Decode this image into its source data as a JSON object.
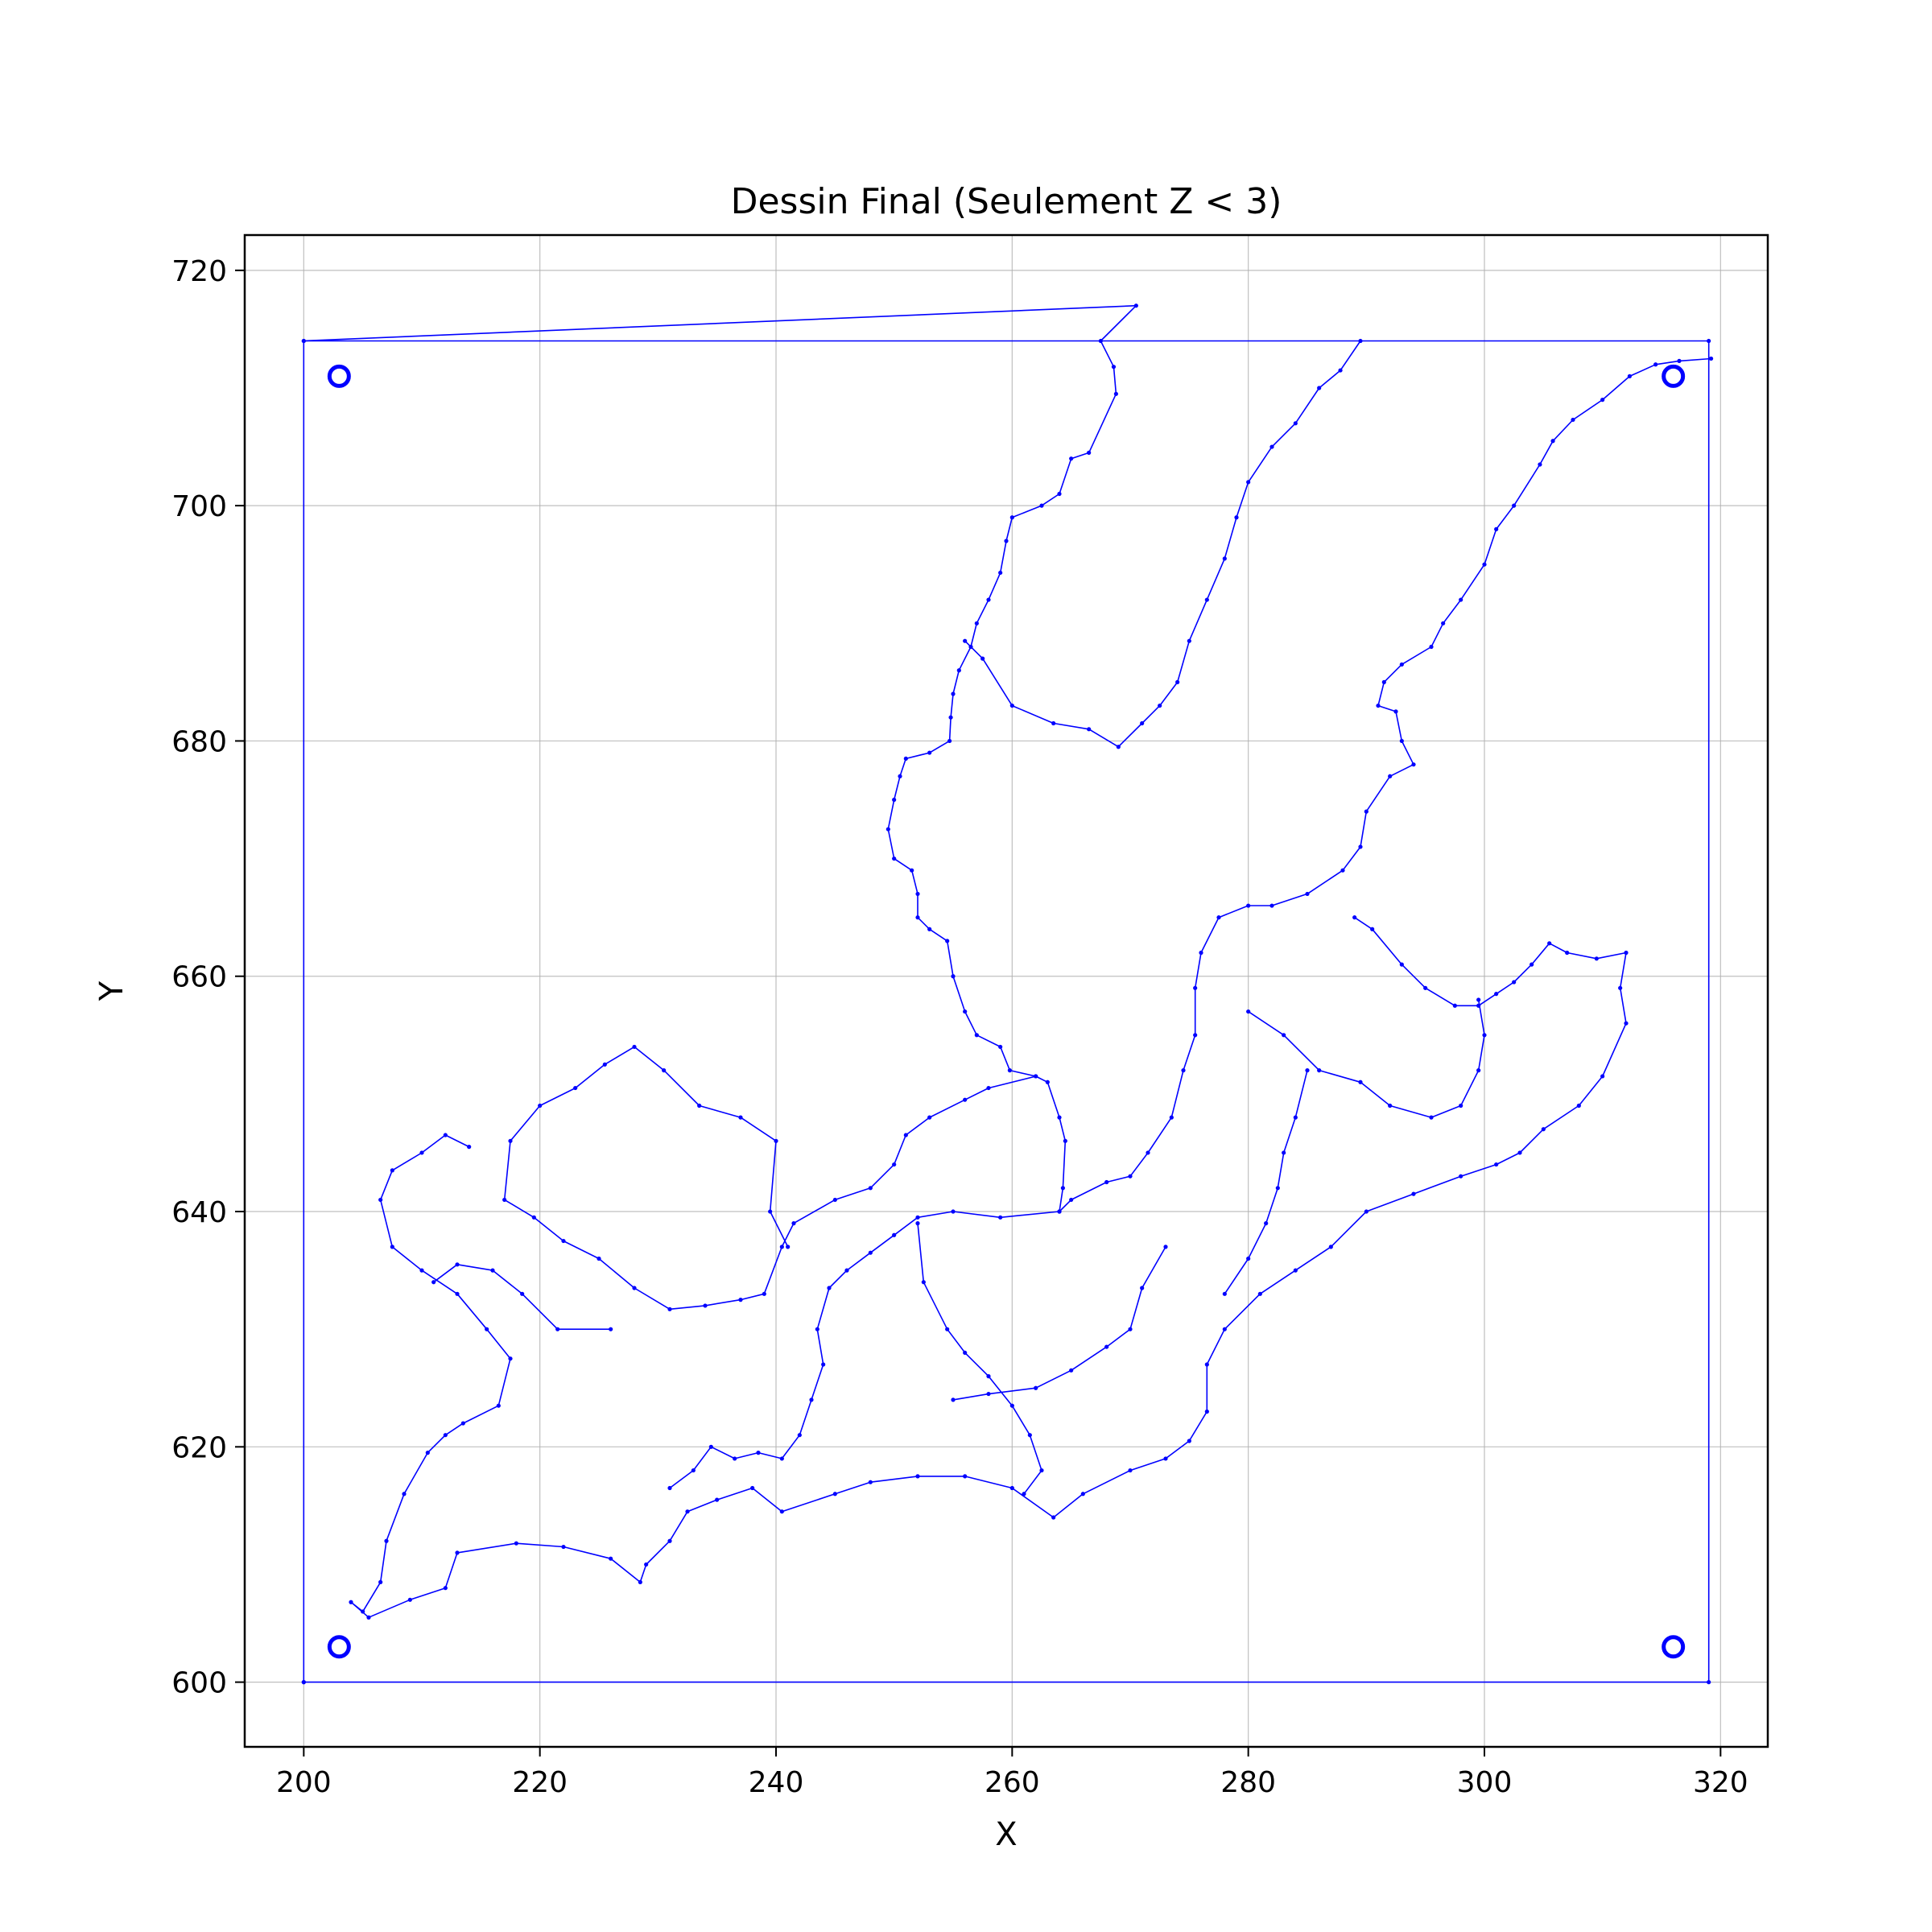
{
  "chart_data": {
    "type": "line",
    "title": "Dessin Final (Seulement Z < 3)",
    "xlabel": "X",
    "ylabel": "Y",
    "xlim": [
      195,
      324
    ],
    "ylim": [
      594.5,
      723
    ],
    "xticks": [
      200,
      220,
      240,
      260,
      280,
      300,
      320
    ],
    "yticks": [
      600,
      620,
      640,
      660,
      680,
      700,
      720
    ],
    "xtick_labels": [
      "200",
      "220",
      "240",
      "260",
      "280",
      "300",
      "320"
    ],
    "ytick_labels": [
      "600",
      "620",
      "640",
      "660",
      "680",
      "700",
      "720"
    ],
    "grid": true,
    "legend": "none",
    "line_color": "#0000ff",
    "series": [
      {
        "values": [
          [
            200,
            600
          ],
          [
            319,
            600
          ],
          [
            319,
            714
          ],
          [
            200,
            714
          ],
          [
            200,
            600
          ]
        ]
      },
      {
        "values": [
          [
            200,
            714
          ],
          [
            270.5,
            717
          ],
          [
            267.5,
            714
          ],
          [
            268.6,
            711.8
          ],
          [
            268.8,
            709.5
          ],
          [
            266.5,
            704.5
          ],
          [
            265,
            704
          ],
          [
            264,
            701
          ],
          [
            262.5,
            700
          ],
          [
            260,
            699
          ],
          [
            259.5,
            697
          ],
          [
            259,
            694.3
          ],
          [
            258,
            692
          ],
          [
            257,
            690
          ],
          [
            256.5,
            688
          ],
          [
            255.5,
            686
          ],
          [
            255,
            684
          ],
          [
            254.8,
            682
          ],
          [
            254.7,
            680
          ],
          [
            253,
            679
          ],
          [
            251,
            678.5
          ],
          [
            250.5,
            677
          ],
          [
            250,
            675
          ],
          [
            249.5,
            672.5
          ],
          [
            250,
            670
          ],
          [
            251.5,
            669
          ],
          [
            252,
            667
          ],
          [
            252,
            665
          ],
          [
            253,
            664
          ],
          [
            254.5,
            663
          ],
          [
            255,
            660
          ],
          [
            256,
            657
          ],
          [
            257,
            655
          ],
          [
            259,
            654
          ],
          [
            259.8,
            652
          ],
          [
            262,
            651.5
          ],
          [
            263,
            651
          ],
          [
            264,
            648
          ],
          [
            264.5,
            646
          ],
          [
            264.3,
            642
          ],
          [
            264,
            640
          ]
        ]
      },
      {
        "values": [
          [
            289.5,
            714
          ],
          [
            287.8,
            711.5
          ],
          [
            286,
            710
          ],
          [
            284,
            707
          ],
          [
            282,
            705
          ],
          [
            280,
            702
          ],
          [
            279,
            699
          ],
          [
            278,
            695.5
          ],
          [
            276.5,
            692
          ],
          [
            275,
            688.5
          ],
          [
            274,
            685
          ],
          [
            272.5,
            683
          ],
          [
            271,
            681.5
          ],
          [
            269,
            679.5
          ],
          [
            266.5,
            681
          ],
          [
            263.5,
            681.5
          ],
          [
            260,
            683
          ],
          [
            257.5,
            687
          ],
          [
            256,
            688.5
          ]
        ]
      },
      {
        "values": [
          [
            319.2,
            712.5
          ],
          [
            316.5,
            712.3
          ],
          [
            314.5,
            712
          ],
          [
            312.3,
            711
          ],
          [
            310,
            709
          ],
          [
            307.5,
            707.3
          ],
          [
            305.8,
            705.5
          ],
          [
            304.7,
            703.5
          ],
          [
            302.5,
            700
          ],
          [
            301,
            698
          ],
          [
            300,
            695
          ],
          [
            298,
            692
          ],
          [
            296.5,
            690
          ],
          [
            295.5,
            688
          ],
          [
            293,
            686.5
          ],
          [
            291.5,
            685
          ],
          [
            291,
            683
          ],
          [
            292.5,
            682.5
          ],
          [
            293,
            680
          ],
          [
            294,
            678
          ],
          [
            292,
            677
          ],
          [
            290,
            674
          ],
          [
            289.5,
            671
          ],
          [
            288,
            669
          ],
          [
            285,
            667
          ],
          [
            282,
            666
          ],
          [
            280,
            666
          ],
          [
            277.5,
            665
          ],
          [
            276,
            662
          ],
          [
            275.5,
            659
          ],
          [
            275.5,
            655
          ],
          [
            274.5,
            652
          ],
          [
            273.5,
            648
          ],
          [
            271.5,
            645
          ],
          [
            270,
            643
          ],
          [
            268,
            642.5
          ],
          [
            265,
            641
          ],
          [
            264,
            640
          ]
        ]
      },
      {
        "values": [
          [
            262,
            651.5
          ],
          [
            258,
            650.5
          ],
          [
            256,
            649.5
          ],
          [
            253,
            648
          ],
          [
            251,
            646.5
          ],
          [
            250,
            644
          ],
          [
            248,
            642
          ],
          [
            245,
            641
          ],
          [
            241.5,
            639
          ],
          [
            240.5,
            637
          ],
          [
            239,
            633
          ],
          [
            237,
            632.5
          ],
          [
            234,
            632
          ],
          [
            231,
            631.7
          ],
          [
            228,
            633.5
          ],
          [
            225,
            636
          ],
          [
            222,
            637.5
          ],
          [
            219.5,
            639.5
          ],
          [
            217,
            641
          ],
          [
            217.5,
            646
          ],
          [
            220,
            649
          ],
          [
            223,
            650.5
          ],
          [
            225.5,
            652.5
          ],
          [
            228,
            654
          ],
          [
            230.5,
            652
          ],
          [
            233.5,
            649
          ],
          [
            237,
            648
          ],
          [
            240,
            646
          ],
          [
            239.5,
            640
          ],
          [
            241,
            637
          ]
        ]
      },
      {
        "values": [
          [
            214,
            645.5
          ],
          [
            212,
            646.5
          ],
          [
            210,
            645
          ],
          [
            207.5,
            643.5
          ],
          [
            206.5,
            641
          ],
          [
            207.5,
            637
          ],
          [
            210,
            635
          ],
          [
            213,
            633
          ],
          [
            215.5,
            630
          ],
          [
            217.5,
            627.5
          ],
          [
            216.5,
            623.5
          ],
          [
            213.5,
            622
          ],
          [
            212,
            621
          ],
          [
            210.5,
            619.5
          ],
          [
            208.5,
            616
          ],
          [
            207,
            612
          ],
          [
            206.5,
            608.5
          ],
          [
            205,
            606
          ],
          [
            204,
            606.8
          ],
          [
            205.5,
            605.5
          ],
          [
            209,
            607
          ],
          [
            212,
            608
          ],
          [
            213,
            611
          ],
          [
            218,
            611.8
          ],
          [
            222,
            611.5
          ],
          [
            226,
            610.5
          ],
          [
            228.5,
            608.5
          ],
          [
            229,
            610
          ],
          [
            231,
            612
          ],
          [
            232.5,
            614.5
          ],
          [
            235,
            615.5
          ],
          [
            238,
            616.5
          ],
          [
            240.5,
            614.5
          ],
          [
            245,
            616
          ],
          [
            248,
            617
          ],
          [
            252,
            617.5
          ],
          [
            256,
            617.5
          ],
          [
            260,
            616.5
          ],
          [
            263.5,
            614
          ],
          [
            266,
            616
          ],
          [
            270,
            618
          ],
          [
            273,
            619
          ],
          [
            275,
            620.5
          ],
          [
            276.5,
            623
          ],
          [
            276.5,
            627
          ],
          [
            278,
            630
          ],
          [
            281,
            633
          ],
          [
            284,
            635
          ],
          [
            287,
            637
          ],
          [
            290,
            640
          ],
          [
            294,
            641.5
          ],
          [
            298,
            643
          ],
          [
            301,
            644
          ],
          [
            303,
            645
          ],
          [
            305,
            647
          ],
          [
            308,
            649
          ],
          [
            310,
            651.5
          ],
          [
            312,
            656
          ],
          [
            311.5,
            659
          ],
          [
            312,
            662
          ],
          [
            309.5,
            661.5
          ],
          [
            307,
            662
          ],
          [
            305.5,
            662.8
          ],
          [
            304,
            661
          ],
          [
            302.5,
            659.5
          ],
          [
            301,
            658.5
          ],
          [
            299.5,
            657.5
          ],
          [
            297.5,
            657.5
          ],
          [
            295,
            659
          ],
          [
            293,
            661
          ],
          [
            290.5,
            664
          ],
          [
            289,
            665
          ]
        ]
      },
      {
        "values": [
          [
            264,
            640
          ],
          [
            259,
            639.5
          ],
          [
            255,
            640
          ],
          [
            252,
            639.5
          ],
          [
            250,
            638
          ],
          [
            248,
            636.5
          ],
          [
            246,
            635
          ],
          [
            244.5,
            633.5
          ],
          [
            243.5,
            630
          ],
          [
            244,
            627
          ],
          [
            243,
            624
          ],
          [
            242,
            621
          ],
          [
            240.5,
            619
          ],
          [
            238.5,
            619.5
          ],
          [
            236.5,
            619
          ],
          [
            234.5,
            620
          ],
          [
            233,
            618
          ],
          [
            231,
            616.5
          ]
        ]
      },
      {
        "values": [
          [
            252,
            639
          ],
          [
            252.5,
            634
          ],
          [
            254.5,
            630
          ],
          [
            256,
            628
          ],
          [
            258,
            626
          ],
          [
            260,
            623.5
          ],
          [
            261.5,
            621
          ],
          [
            262.5,
            618
          ],
          [
            261,
            616
          ]
        ]
      },
      {
        "values": [
          [
            280,
            657
          ],
          [
            283,
            655
          ],
          [
            286,
            652
          ],
          [
            289.5,
            651
          ],
          [
            292,
            649
          ],
          [
            295.5,
            648
          ],
          [
            298,
            649
          ],
          [
            299.5,
            652
          ],
          [
            300,
            655
          ],
          [
            299.5,
            658
          ]
        ]
      },
      {
        "values": [
          [
            226,
            630
          ],
          [
            221.5,
            630
          ],
          [
            218.5,
            633
          ],
          [
            216,
            635
          ],
          [
            213,
            635.5
          ],
          [
            211,
            634
          ]
        ]
      },
      {
        "values": [
          [
            273,
            637
          ],
          [
            271,
            633.5
          ],
          [
            270,
            630
          ],
          [
            268,
            628.5
          ],
          [
            265,
            626.5
          ],
          [
            262,
            625
          ],
          [
            258,
            624.5
          ],
          [
            255,
            624
          ]
        ]
      },
      {
        "values": [
          [
            285,
            652
          ],
          [
            284,
            648
          ],
          [
            283,
            645
          ],
          [
            282.5,
            642
          ],
          [
            281.5,
            639
          ],
          [
            280,
            636
          ],
          [
            278,
            633
          ]
        ]
      }
    ],
    "markers": [
      [
        203,
        711
      ],
      [
        316,
        711
      ],
      [
        203,
        603
      ],
      [
        316,
        603
      ]
    ]
  }
}
